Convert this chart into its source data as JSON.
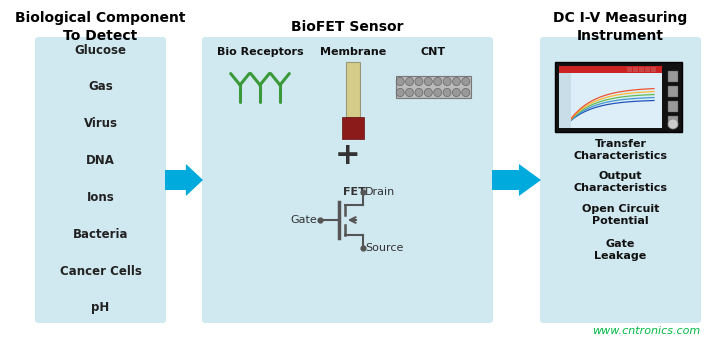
{
  "bg_color": "#ffffff",
  "panel_color": "#d0e8f0",
  "title1": "Biological Component\nTo Detect",
  "title2": "BioFET Sensor",
  "title3": "DC I-V Measuring\nInstrument",
  "bio_items": [
    "Glucose",
    "Gas",
    "Virus",
    "DNA",
    "Ions",
    "Bacteria",
    "Cancer Cells",
    "pH"
  ],
  "dc_items": [
    "Transfer\nCharacteristics",
    "Output\nCharacteristics",
    "Open Circuit\nPotential",
    "Gate\nLeakage"
  ],
  "watermark": "www.cntronics.com",
  "watermark_color": "#00bb44",
  "panel_labels": [
    "Bio Receptors",
    "Membrane",
    "CNT"
  ],
  "fet_labels": [
    "FET",
    "Gate",
    "Drain",
    "Source"
  ],
  "plus_symbol": "+",
  "arrow_color": "#00aadd",
  "green_color": "#3a9a3a",
  "dark_red": "#8B1A1A",
  "membrane_color": "#d4cc88",
  "cnt_color": "#aaaaaa",
  "screen_bg": "#ddeef5",
  "screen_outer": "#1a1a1a",
  "curve_colors": [
    "#3366cc",
    "#66aaee",
    "#88cc66",
    "#ffaa44",
    "#ee6644"
  ],
  "title_fontsize": 10,
  "item_fontsize": 8.5,
  "label_fontsize": 8,
  "sub_label_fontsize": 8
}
